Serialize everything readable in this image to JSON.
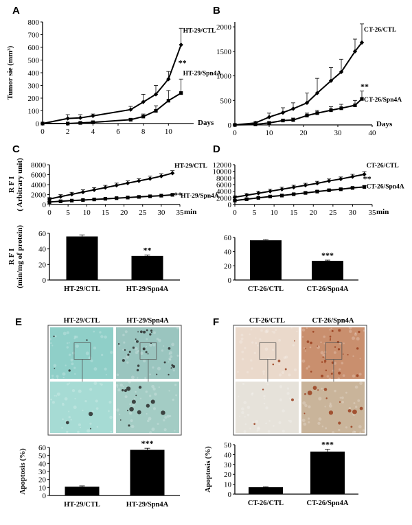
{
  "panel_labels": [
    "A",
    "B",
    "C",
    "D",
    "E",
    "F"
  ],
  "chart_data": [
    {
      "id": "A",
      "type": "line",
      "title": "",
      "xlabel": "Days",
      "ylabel": "Tumor sie (mm³)",
      "xlim": [
        0,
        12
      ],
      "ylim": [
        0,
        800
      ],
      "xticks": [
        0,
        2,
        4,
        6,
        8,
        10
      ],
      "yticks": [
        0,
        100,
        200,
        300,
        400,
        500,
        600,
        700,
        800
      ],
      "series": [
        {
          "name": "HT-29/CTL",
          "marker": "diamond",
          "x": [
            0,
            2,
            3,
            4,
            7,
            8,
            9,
            10,
            11
          ],
          "y": [
            0,
            40,
            45,
            60,
            110,
            170,
            230,
            350,
            620
          ],
          "err": [
            0,
            30,
            25,
            15,
            25,
            60,
            70,
            60,
            130
          ]
        },
        {
          "name": "HT-29/Spn4A",
          "marker": "square",
          "annotation": "**",
          "x": [
            0,
            2,
            3,
            4,
            7,
            8,
            9,
            10,
            11
          ],
          "y": [
            0,
            0,
            5,
            10,
            30,
            55,
            100,
            180,
            240
          ],
          "err": [
            0,
            0,
            5,
            5,
            10,
            20,
            40,
            80,
            110
          ]
        }
      ]
    },
    {
      "id": "B",
      "type": "line",
      "title": "",
      "xlabel": "Days",
      "ylabel": "",
      "xlim": [
        0,
        40
      ],
      "ylim": [
        0,
        2100
      ],
      "xticks": [
        0,
        10,
        20,
        30,
        40
      ],
      "yticks": [
        0,
        500,
        1000,
        1500,
        2000
      ],
      "series": [
        {
          "name": "CT-26/CTL",
          "marker": "diamond",
          "x": [
            0,
            6,
            10,
            14,
            17,
            21,
            24,
            28,
            31,
            35,
            37
          ],
          "y": [
            0,
            40,
            160,
            250,
            330,
            450,
            650,
            900,
            1080,
            1500,
            1680
          ],
          "err": [
            0,
            30,
            80,
            100,
            120,
            200,
            300,
            270,
            260,
            250,
            380
          ]
        },
        {
          "name": "CT-26/Spn4A",
          "marker": "square",
          "annotation": "**",
          "x": [
            0,
            6,
            10,
            14,
            17,
            21,
            24,
            28,
            31,
            35,
            37
          ],
          "y": [
            0,
            10,
            40,
            90,
            100,
            190,
            240,
            300,
            340,
            400,
            530
          ],
          "err": [
            0,
            10,
            20,
            30,
            40,
            50,
            60,
            70,
            80,
            100,
            160
          ]
        }
      ]
    },
    {
      "id": "C",
      "type": "line",
      "title": "",
      "xlabel": "min",
      "ylabel": "R F I",
      "ylabel2": "( Arbitrary unit)",
      "xlim": [
        0,
        35
      ],
      "ylim": [
        0,
        8000
      ],
      "xticks": [
        0,
        5,
        10,
        15,
        20,
        25,
        30,
        35
      ],
      "yticks": [
        0,
        2000,
        4000,
        6000,
        8000
      ],
      "series": [
        {
          "name": "HT-29/CTL",
          "marker": "diamond",
          "x": [
            0,
            3,
            6,
            9,
            12,
            15,
            18,
            21,
            24,
            27,
            30,
            33
          ],
          "y": [
            1100,
            1580,
            2050,
            2500,
            2950,
            3400,
            3850,
            4300,
            4750,
            5200,
            5700,
            6300
          ],
          "err": [
            300,
            400,
            400,
            450,
            450,
            450,
            450,
            450,
            450,
            500,
            500,
            500
          ]
        },
        {
          "name": "HT-29/Spn4A",
          "marker": "square",
          "annotation": "**",
          "x": [
            0,
            3,
            6,
            9,
            12,
            15,
            18,
            21,
            24,
            27,
            30,
            33
          ],
          "y": [
            500,
            650,
            780,
            900,
            1020,
            1150,
            1280,
            1400,
            1530,
            1650,
            1780,
            1950
          ],
          "err": [
            80,
            100,
            100,
            100,
            100,
            100,
            100,
            100,
            100,
            100,
            100,
            150
          ]
        }
      ]
    },
    {
      "id": "D",
      "type": "line",
      "title": "",
      "xlabel": "min",
      "ylabel": "",
      "xlim": [
        0,
        35
      ],
      "ylim": [
        0,
        12000
      ],
      "xticks": [
        0,
        5,
        10,
        15,
        20,
        25,
        30,
        35
      ],
      "yticks": [
        0,
        2000,
        4000,
        6000,
        8000,
        10000,
        12000
      ],
      "series": [
        {
          "name": "CT-26/CTL",
          "marker": "diamond",
          "x": [
            0,
            3,
            6,
            9,
            12,
            15,
            18,
            21,
            24,
            27,
            30,
            33
          ],
          "y": [
            2200,
            2800,
            3400,
            4000,
            4600,
            5200,
            5800,
            6400,
            7100,
            7700,
            8400,
            9100
          ],
          "err": [
            400,
            500,
            600,
            600,
            600,
            600,
            600,
            600,
            600,
            600,
            700,
            800
          ]
        },
        {
          "name": "CT-26/Spn4A",
          "marker": "square",
          "annotation": "**",
          "x": [
            0,
            3,
            6,
            9,
            12,
            15,
            18,
            21,
            24,
            27,
            30,
            33
          ],
          "y": [
            1200,
            1600,
            2000,
            2400,
            2700,
            3100,
            3500,
            3900,
            4300,
            4600,
            5000,
            5300
          ],
          "err": [
            200,
            250,
            250,
            250,
            250,
            250,
            300,
            300,
            300,
            300,
            300,
            400
          ]
        }
      ]
    },
    {
      "id": "C2",
      "type": "bar",
      "title": "",
      "xlabel": "",
      "ylabel": "R F I",
      "ylabel2": "(min/mg of protein)",
      "ylim": [
        0,
        60
      ],
      "yticks": [
        0,
        20,
        40,
        60
      ],
      "categories": [
        "HT-29/CTL",
        "HT-29/Spn4A"
      ],
      "values": [
        56,
        31
      ],
      "err": [
        2,
        1
      ],
      "annotations": [
        "",
        "**"
      ]
    },
    {
      "id": "D2",
      "type": "bar",
      "title": "",
      "xlabel": "",
      "ylabel": "",
      "ylim": [
        0,
        60
      ],
      "yticks": [
        0,
        20,
        40,
        60
      ],
      "categories": [
        "CT-26/CTL",
        "CT-26/Spn4A"
      ],
      "values": [
        56,
        27
      ],
      "err": [
        1,
        1
      ],
      "annotations": [
        "",
        "***"
      ]
    },
    {
      "id": "E2",
      "type": "bar",
      "title": "",
      "xlabel": "",
      "ylabel": "Apoptosis (%)",
      "ylim": [
        0,
        60
      ],
      "yticks": [
        0,
        10,
        20,
        30,
        40,
        50,
        60
      ],
      "categories": [
        "HT-29/CTL",
        "HT-29/Spn4A"
      ],
      "values": [
        11,
        57
      ],
      "err": [
        1,
        2
      ],
      "annotations": [
        "",
        "***"
      ]
    },
    {
      "id": "F2",
      "type": "bar",
      "title": "",
      "xlabel": "",
      "ylabel": "Apoptosis (%)",
      "ylim": [
        0,
        50
      ],
      "yticks": [
        0,
        10,
        20,
        30,
        40,
        50
      ],
      "categories": [
        "CT-26/CTL",
        "CT-26/Spn4A"
      ],
      "values": [
        7,
        43
      ],
      "err": [
        0.5,
        2.5
      ],
      "annotations": [
        "",
        "***"
      ]
    }
  ],
  "micrographs": [
    {
      "id": "E",
      "labels": [
        "HT-29/CTL",
        "HT-29/Spn4A"
      ],
      "colors": {
        "bg_ctl": "#8fcfc8",
        "bg_ctl_zoom": "#a6dbd4",
        "bg_treat": "#9ac5bf",
        "bg_treat_zoom": "#a3ccc4",
        "dots": "#2a2a2a"
      }
    },
    {
      "id": "F",
      "labels": [
        "CT-26/CTL",
        "CT-26/Spn4A"
      ],
      "colors": {
        "bg_ctl": "#ead9cb",
        "bg_ctl_zoom": "#e6e2da",
        "bg_treat": "#c98f6e",
        "bg_treat_zoom": "#c9b49a",
        "dots": "#9a3f1f"
      }
    }
  ]
}
